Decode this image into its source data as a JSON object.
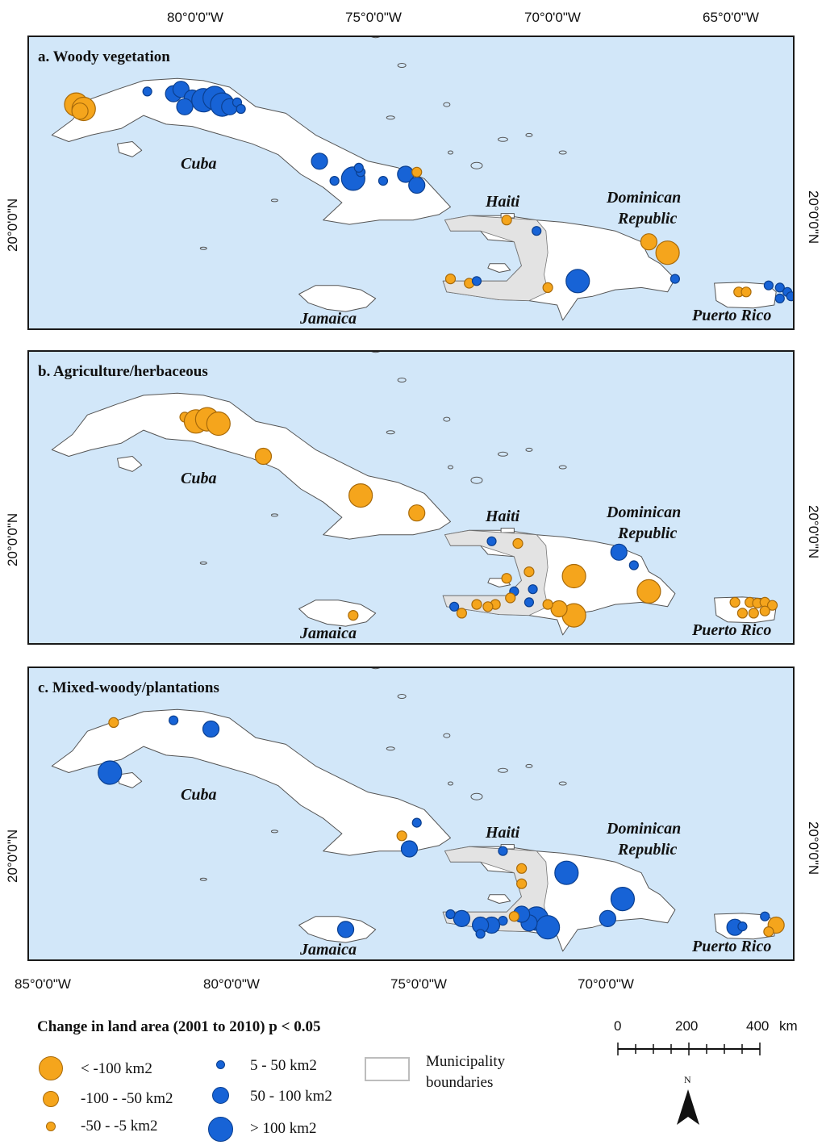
{
  "coords": {
    "top_lon": [
      "80°0'0\"W",
      "75°0'0\"W",
      "70°0'0\"W",
      "65°0'0\"W"
    ],
    "bottom_lon": [
      "85°0'0\"W",
      "80°0'0\"W",
      "75°0'0\"W",
      "70°0'0\"W"
    ],
    "lat": "20°0'0\"N"
  },
  "panels": [
    {
      "title": "a. Woody vegetation",
      "labels": {
        "cuba": "Cuba",
        "haiti": "Haiti",
        "dr1": "Dominican",
        "dr2": "Republic",
        "jamaica": "Jamaica",
        "pr": "Puerto Rico"
      },
      "points": [
        {
          "lon": -84.3,
          "lat": 22.6,
          "cls": "lt100"
        },
        {
          "lon": -84.1,
          "lat": 22.5,
          "cls": "lt100"
        },
        {
          "lon": -84.2,
          "lat": 22.45,
          "cls": "m100_50"
        },
        {
          "lon": -82.4,
          "lat": 22.9,
          "cls": "p5_50"
        },
        {
          "lon": -81.7,
          "lat": 22.85,
          "cls": "p50_100"
        },
        {
          "lon": -81.5,
          "lat": 22.95,
          "cls": "p50_100"
        },
        {
          "lon": -81.2,
          "lat": 22.75,
          "cls": "p50_100"
        },
        {
          "lon": -80.9,
          "lat": 22.7,
          "cls": "gt100"
        },
        {
          "lon": -80.6,
          "lat": 22.75,
          "cls": "gt100"
        },
        {
          "lon": -80.4,
          "lat": 22.6,
          "cls": "gt100"
        },
        {
          "lon": -80.2,
          "lat": 22.55,
          "cls": "p50_100"
        },
        {
          "lon": -81.4,
          "lat": 22.55,
          "cls": "p50_100"
        },
        {
          "lon": -80.0,
          "lat": 22.65,
          "cls": "p5_50"
        },
        {
          "lon": -79.9,
          "lat": 22.5,
          "cls": "p5_50"
        },
        {
          "lon": -77.8,
          "lat": 21.3,
          "cls": "p50_100"
        },
        {
          "lon": -76.9,
          "lat": 20.9,
          "cls": "gt100"
        },
        {
          "lon": -76.7,
          "lat": 21.05,
          "cls": "p5_50"
        },
        {
          "lon": -76.75,
          "lat": 21.15,
          "cls": "p5_50"
        },
        {
          "lon": -77.4,
          "lat": 20.85,
          "cls": "p5_50"
        },
        {
          "lon": -76.1,
          "lat": 20.85,
          "cls": "p5_50"
        },
        {
          "lon": -75.5,
          "lat": 21.0,
          "cls": "p50_100"
        },
        {
          "lon": -75.2,
          "lat": 20.75,
          "cls": "p50_100"
        },
        {
          "lon": -75.2,
          "lat": 21.05,
          "cls": "m50_5"
        },
        {
          "lon": -72.8,
          "lat": 19.95,
          "cls": "m50_5"
        },
        {
          "lon": -72.0,
          "lat": 19.7,
          "cls": "p5_50"
        },
        {
          "lon": -74.3,
          "lat": 18.6,
          "cls": "m50_5"
        },
        {
          "lon": -73.8,
          "lat": 18.5,
          "cls": "m50_5"
        },
        {
          "lon": -73.6,
          "lat": 18.55,
          "cls": "p5_50"
        },
        {
          "lon": -71.7,
          "lat": 18.4,
          "cls": "m50_5"
        },
        {
          "lon": -70.9,
          "lat": 18.55,
          "cls": "gt100"
        },
        {
          "lon": -69.0,
          "lat": 19.45,
          "cls": "m100_50"
        },
        {
          "lon": -68.5,
          "lat": 19.2,
          "cls": "lt100"
        },
        {
          "lon": -68.3,
          "lat": 18.6,
          "cls": "p5_50"
        },
        {
          "lon": -66.6,
          "lat": 18.3,
          "cls": "m50_5"
        },
        {
          "lon": -66.4,
          "lat": 18.3,
          "cls": "m50_5"
        },
        {
          "lon": -65.8,
          "lat": 18.45,
          "cls": "p5_50"
        },
        {
          "lon": -65.5,
          "lat": 18.4,
          "cls": "p5_50"
        },
        {
          "lon": -65.3,
          "lat": 18.3,
          "cls": "p5_50"
        },
        {
          "lon": -65.5,
          "lat": 18.15,
          "cls": "p5_50"
        },
        {
          "lon": -65.2,
          "lat": 18.2,
          "cls": "p5_50"
        }
      ]
    },
    {
      "title": "b. Agriculture/herbaceous",
      "labels": {
        "cuba": "Cuba",
        "haiti": "Haiti",
        "dr1": "Dominican",
        "dr2": "Republic",
        "jamaica": "Jamaica",
        "pr": "Puerto Rico"
      },
      "points": [
        {
          "lon": -81.4,
          "lat": 22.65,
          "cls": "m50_5"
        },
        {
          "lon": -81.1,
          "lat": 22.55,
          "cls": "lt100"
        },
        {
          "lon": -80.8,
          "lat": 22.6,
          "cls": "lt100"
        },
        {
          "lon": -80.5,
          "lat": 22.5,
          "cls": "lt100"
        },
        {
          "lon": -79.3,
          "lat": 21.75,
          "cls": "m100_50"
        },
        {
          "lon": -76.7,
          "lat": 20.85,
          "cls": "lt100"
        },
        {
          "lon": -75.2,
          "lat": 20.45,
          "cls": "m100_50"
        },
        {
          "lon": -76.9,
          "lat": 18.1,
          "cls": "m50_5"
        },
        {
          "lon": -73.2,
          "lat": 19.8,
          "cls": "p5_50"
        },
        {
          "lon": -72.5,
          "lat": 19.75,
          "cls": "m50_5"
        },
        {
          "lon": -72.2,
          "lat": 19.1,
          "cls": "m50_5"
        },
        {
          "lon": -72.8,
          "lat": 18.95,
          "cls": "m50_5"
        },
        {
          "lon": -72.6,
          "lat": 18.65,
          "cls": "p5_50"
        },
        {
          "lon": -72.1,
          "lat": 18.7,
          "cls": "p5_50"
        },
        {
          "lon": -71.0,
          "lat": 19.0,
          "cls": "lt100"
        },
        {
          "lon": -69.8,
          "lat": 19.55,
          "cls": "p50_100"
        },
        {
          "lon": -69.4,
          "lat": 19.25,
          "cls": "p5_50"
        },
        {
          "lon": -69.0,
          "lat": 18.65,
          "cls": "lt100"
        },
        {
          "lon": -71.0,
          "lat": 18.1,
          "cls": "lt100"
        },
        {
          "lon": -71.4,
          "lat": 18.25,
          "cls": "m100_50"
        },
        {
          "lon": -71.7,
          "lat": 18.35,
          "cls": "m50_5"
        },
        {
          "lon": -72.2,
          "lat": 18.4,
          "cls": "p5_50"
        },
        {
          "lon": -72.7,
          "lat": 18.5,
          "cls": "m50_5"
        },
        {
          "lon": -73.1,
          "lat": 18.35,
          "cls": "m50_5"
        },
        {
          "lon": -73.3,
          "lat": 18.3,
          "cls": "m50_5"
        },
        {
          "lon": -73.6,
          "lat": 18.35,
          "cls": "m50_5"
        },
        {
          "lon": -74.2,
          "lat": 18.3,
          "cls": "p5_50"
        },
        {
          "lon": -74.0,
          "lat": 18.15,
          "cls": "m50_5"
        },
        {
          "lon": -66.7,
          "lat": 18.4,
          "cls": "m50_5"
        },
        {
          "lon": -66.3,
          "lat": 18.4,
          "cls": "m50_5"
        },
        {
          "lon": -66.1,
          "lat": 18.38,
          "cls": "m50_5"
        },
        {
          "lon": -65.9,
          "lat": 18.4,
          "cls": "m50_5"
        },
        {
          "lon": -65.7,
          "lat": 18.33,
          "cls": "m50_5"
        },
        {
          "lon": -66.5,
          "lat": 18.15,
          "cls": "m50_5"
        },
        {
          "lon": -66.2,
          "lat": 18.15,
          "cls": "m50_5"
        },
        {
          "lon": -65.9,
          "lat": 18.2,
          "cls": "m50_5"
        }
      ]
    },
    {
      "title": "c. Mixed-woody/plantations",
      "labels": {
        "cuba": "Cuba",
        "haiti": "Haiti",
        "dr1": "Dominican",
        "dr2": "Republic",
        "jamaica": "Jamaica",
        "pr": "Puerto Rico"
      },
      "points": [
        {
          "lon": -83.3,
          "lat": 22.9,
          "cls": "m50_5"
        },
        {
          "lon": -81.7,
          "lat": 22.95,
          "cls": "p5_50"
        },
        {
          "lon": -80.7,
          "lat": 22.75,
          "cls": "p50_100"
        },
        {
          "lon": -83.4,
          "lat": 21.75,
          "cls": "gt100"
        },
        {
          "lon": -75.6,
          "lat": 20.3,
          "cls": "m50_5"
        },
        {
          "lon": -75.2,
          "lat": 20.6,
          "cls": "p5_50"
        },
        {
          "lon": -75.4,
          "lat": 20.0,
          "cls": "p50_100"
        },
        {
          "lon": -77.1,
          "lat": 18.15,
          "cls": "p50_100"
        },
        {
          "lon": -72.9,
          "lat": 19.95,
          "cls": "p5_50"
        },
        {
          "lon": -72.4,
          "lat": 19.55,
          "cls": "m50_5"
        },
        {
          "lon": -72.4,
          "lat": 19.2,
          "cls": "m50_5"
        },
        {
          "lon": -71.2,
          "lat": 19.45,
          "cls": "gt100"
        },
        {
          "lon": -69.7,
          "lat": 18.85,
          "cls": "gt100"
        },
        {
          "lon": -70.1,
          "lat": 18.4,
          "cls": "p50_100"
        },
        {
          "lon": -72.0,
          "lat": 18.4,
          "cls": "gt100"
        },
        {
          "lon": -71.7,
          "lat": 18.2,
          "cls": "gt100"
        },
        {
          "lon": -72.2,
          "lat": 18.3,
          "cls": "p50_100"
        },
        {
          "lon": -72.4,
          "lat": 18.5,
          "cls": "p50_100"
        },
        {
          "lon": -72.6,
          "lat": 18.45,
          "cls": "m50_5"
        },
        {
          "lon": -72.9,
          "lat": 18.35,
          "cls": "p5_50"
        },
        {
          "lon": -73.2,
          "lat": 18.25,
          "cls": "p50_100"
        },
        {
          "lon": -73.5,
          "lat": 18.25,
          "cls": "p50_100"
        },
        {
          "lon": -74.0,
          "lat": 18.4,
          "cls": "p50_100"
        },
        {
          "lon": -74.3,
          "lat": 18.5,
          "cls": "p5_50"
        },
        {
          "lon": -73.5,
          "lat": 18.05,
          "cls": "p5_50"
        },
        {
          "lon": -66.7,
          "lat": 18.2,
          "cls": "p50_100"
        },
        {
          "lon": -66.5,
          "lat": 18.22,
          "cls": "p5_50"
        },
        {
          "lon": -65.9,
          "lat": 18.45,
          "cls": "p5_50"
        },
        {
          "lon": -65.6,
          "lat": 18.25,
          "cls": "m100_50"
        },
        {
          "lon": -65.8,
          "lat": 18.1,
          "cls": "m50_5"
        }
      ]
    }
  ],
  "legend": {
    "title": "Change in land area (2001 to 2010) p < 0.05",
    "classes": {
      "lt100": {
        "label": "< -100 km2",
        "color": "#f5a51c"
      },
      "m100_50": {
        "label": "-100 - -50 km2",
        "color": "#f5a51c"
      },
      "m50_5": {
        "label": "-50 - -5 km2",
        "color": "#f5a51c"
      },
      "p5_50": {
        "label": "5 - 50 km2",
        "color": "#1763d6"
      },
      "p50_100": {
        "label": "50 - 100 km2",
        "color": "#1763d6"
      },
      "gt100": {
        "label": "> 100 km2",
        "color": "#1763d6"
      }
    },
    "muni_1": "Municipality",
    "muni_2": "boundaries"
  },
  "scalebar": {
    "ticks": [
      "0",
      "200",
      "400"
    ],
    "unit": "km"
  },
  "north": "N"
}
